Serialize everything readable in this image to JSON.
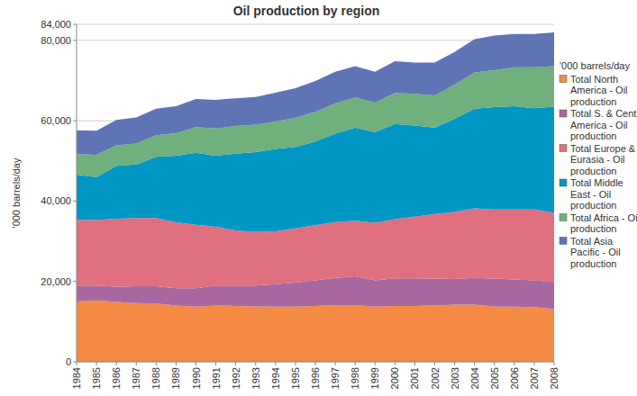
{
  "chart_data": {
    "type": "area",
    "stacked": true,
    "title": "Oil production by region",
    "y_label": "'000 barrels/day",
    "legend_title": "'000 barrels/day",
    "legend": "right",
    "grid": true,
    "categories": [
      "1984",
      "1985",
      "1986",
      "1987",
      "1988",
      "1989",
      "1990",
      "1991",
      "1992",
      "1993",
      "1994",
      "1995",
      "1996",
      "1997",
      "1998",
      "1999",
      "2000",
      "2001",
      "2002",
      "2003",
      "2004",
      "2005",
      "2006",
      "2007",
      "2008"
    ],
    "ylim": [
      0,
      84000
    ],
    "yticks": [
      0,
      {
        "value": 20000,
        "label": "20,000"
      },
      {
        "value": 40000,
        "label": "40,000"
      },
      {
        "value": 60000,
        "label": "60,000"
      },
      {
        "value": 80000,
        "label": "80,000"
      },
      {
        "value": 84000,
        "label": "84,000"
      }
    ],
    "series": [
      {
        "name": "Total North America - Oil production",
        "color": "#f58a45",
        "values": [
          15000,
          15300,
          14900,
          14600,
          14500,
          14000,
          13700,
          14000,
          13900,
          13800,
          13700,
          13700,
          13900,
          14100,
          14100,
          13700,
          13900,
          13900,
          14000,
          14200,
          14200,
          13700,
          13700,
          13600,
          13100
        ]
      },
      {
        "name": "Total S. & Cent. America - Oil production",
        "color": "#a967a0",
        "values": [
          4000,
          3700,
          3800,
          4200,
          4300,
          4300,
          4600,
          5000,
          5100,
          5200,
          5600,
          6000,
          6400,
          6800,
          7200,
          6600,
          6900,
          6900,
          6700,
          6400,
          6700,
          7000,
          6800,
          6700,
          6700
        ]
      },
      {
        "name": "Total Europe & Eurasia - Oil production",
        "color": "#e0707f",
        "values": [
          16300,
          16300,
          16900,
          17000,
          17000,
          16400,
          15800,
          14600,
          13700,
          13300,
          13200,
          13500,
          13700,
          13900,
          13800,
          14300,
          14700,
          15300,
          16100,
          16700,
          17300,
          17200,
          17400,
          17600,
          17300
        ]
      },
      {
        "name": "Total Middle East - Oil production",
        "color": "#0097c4",
        "values": [
          11300,
          10700,
          13200,
          13300,
          15200,
          16600,
          17900,
          17700,
          19100,
          19900,
          20500,
          20300,
          20800,
          22000,
          23200,
          22600,
          23700,
          22700,
          21500,
          23200,
          24800,
          25500,
          25700,
          25200,
          26400
        ]
      },
      {
        "name": "Total Africa - Oil production",
        "color": "#6fb07c",
        "values": [
          5100,
          5500,
          5100,
          5200,
          5400,
          5600,
          6400,
          6800,
          6900,
          6800,
          6800,
          7200,
          7400,
          7500,
          7500,
          7300,
          7700,
          7900,
          8000,
          8500,
          9000,
          9200,
          9700,
          10200,
          10100
        ]
      },
      {
        "name": "Total Asia Pacific - Oil production",
        "color": "#5e74b5",
        "values": [
          5900,
          6000,
          6300,
          6500,
          6600,
          6700,
          7000,
          7100,
          6900,
          6900,
          7200,
          7400,
          7700,
          7900,
          7800,
          7700,
          7900,
          7800,
          8200,
          8100,
          8300,
          8600,
          8300,
          8300,
          8400
        ]
      }
    ]
  }
}
